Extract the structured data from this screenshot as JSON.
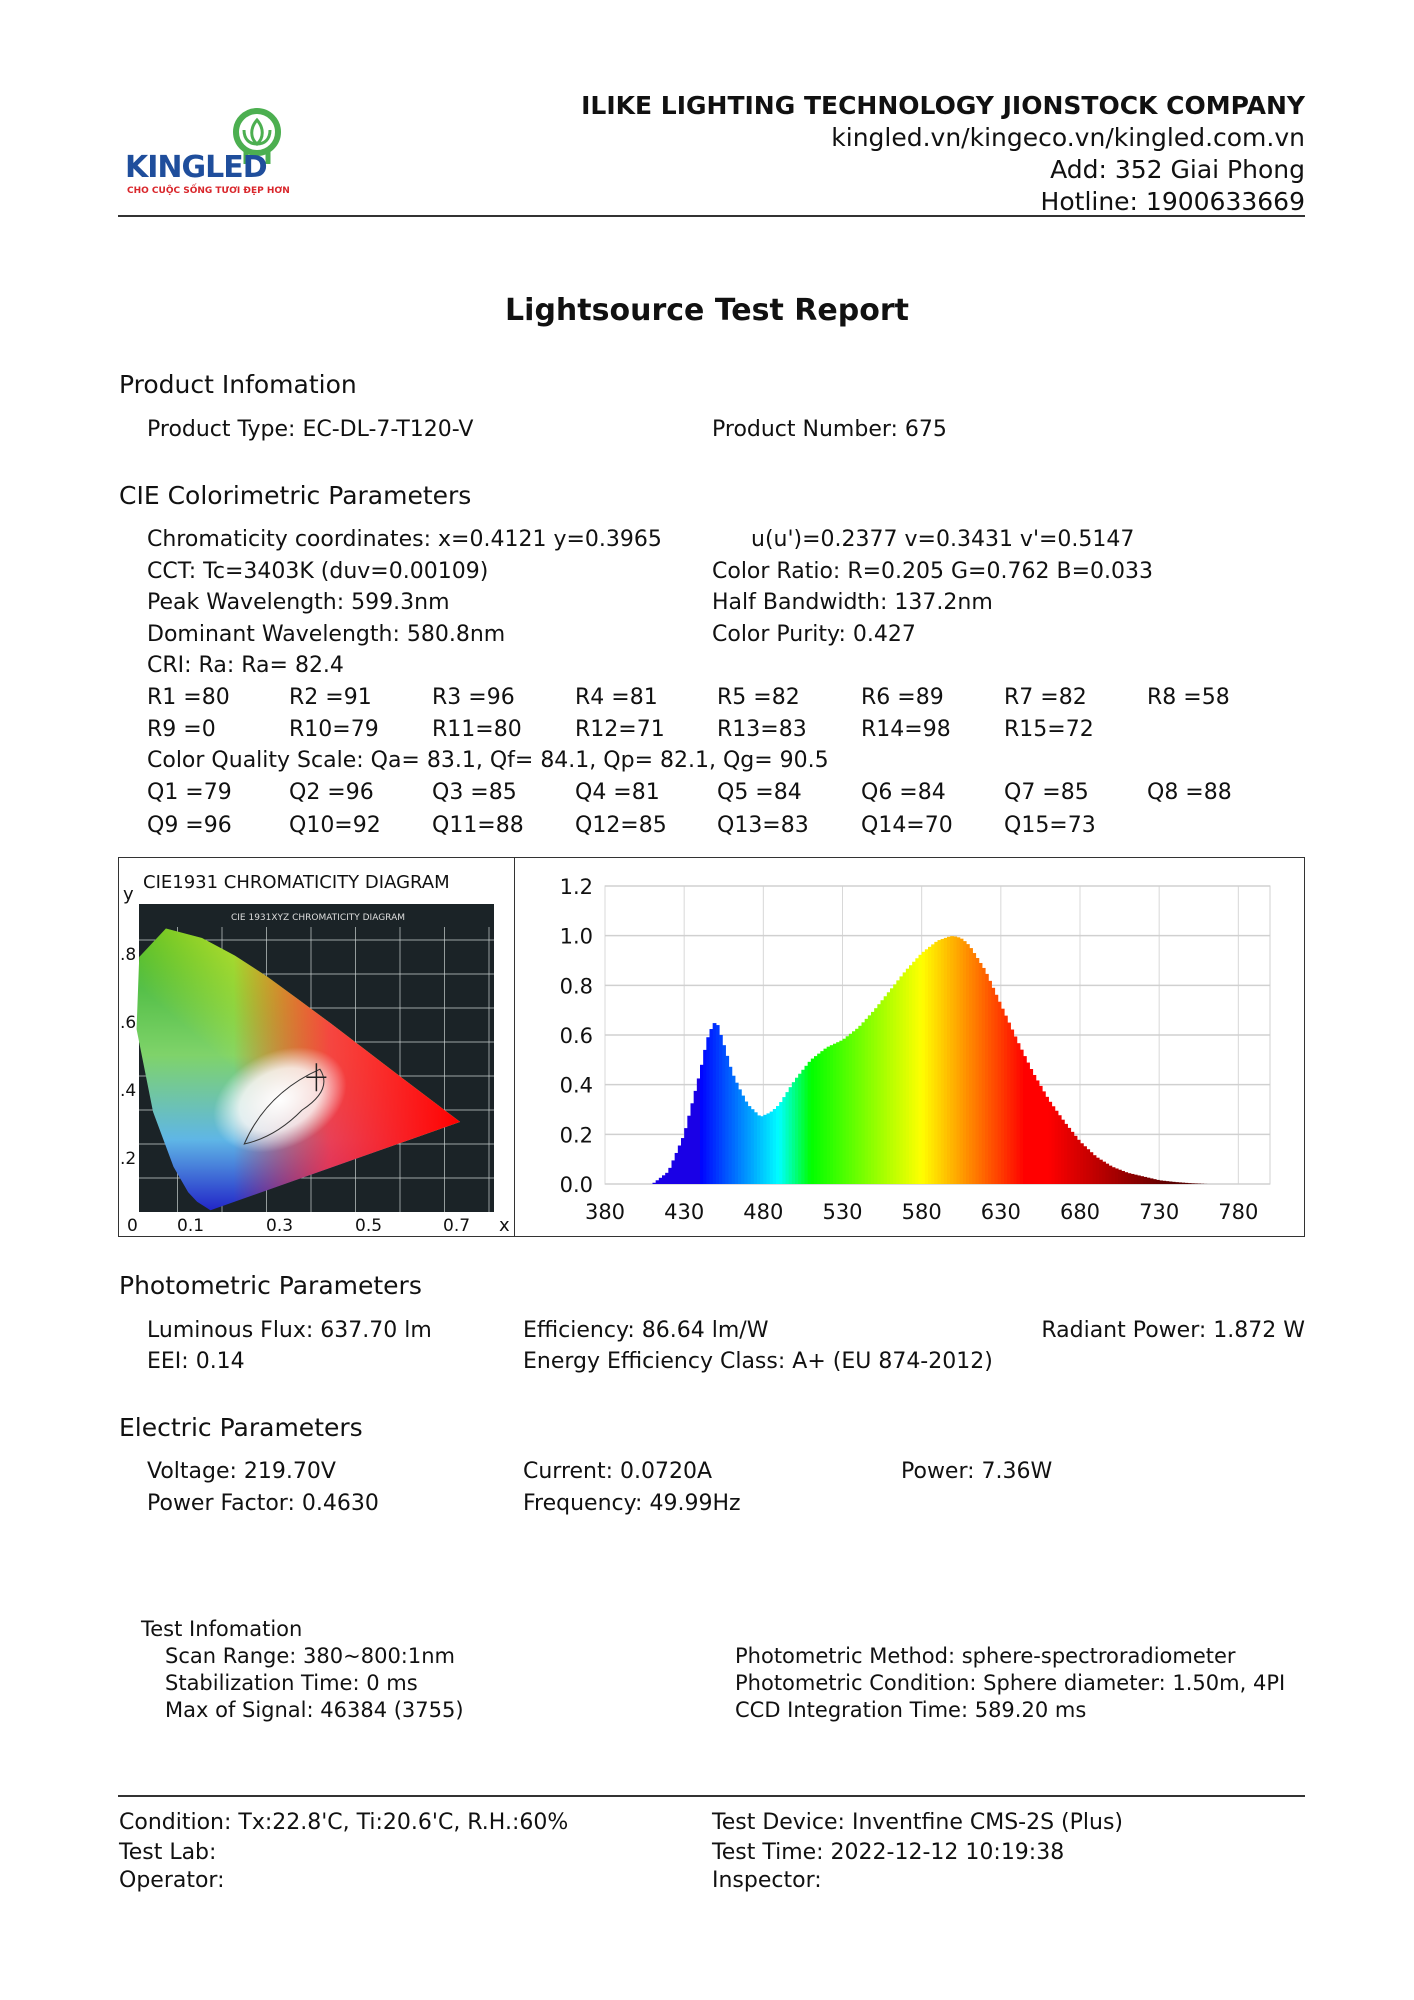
{
  "logo": {
    "brand": "KINGLED",
    "tagline": "CHO CUỘC SỐNG TƯƠI ĐẸP HƠN",
    "colors": {
      "blue": "#1f4e9c",
      "red": "#d9262b",
      "green": "#4caf50"
    }
  },
  "header": {
    "company": "ILIKE LIGHTING TECHNOLOGY JIONSTOCK COMPANY",
    "website": "kingled.vn/kingeco.vn/kingled.com.vn",
    "address": "Add: 352 Giai Phong",
    "hotline": "Hotline: 1900633669"
  },
  "title": "Lightsource Test Report",
  "product": {
    "heading": "Product Infomation",
    "type": "Product Type: EC-DL-7-T120-V",
    "number": "Product Number: 675"
  },
  "cie": {
    "heading": "CIE Colorimetric Parameters",
    "chromaticity": "Chromaticity coordinates: x=0.4121 y=0.3965",
    "uv": "u(u')=0.2377 v=0.3431 v'=0.5147",
    "cct": "CCT: Tc=3403K (duv=0.00109)",
    "color_ratio": "Color Ratio: R=0.205  G=0.762  B=0.033",
    "peak": "Peak Wavelength: 599.3nm",
    "half_bandwidth": "Half Bandwidth: 137.2nm",
    "dominant": "Dominant Wavelength: 580.8nm",
    "purity": "Color Purity: 0.427",
    "cri": "CRI: Ra: Ra= 82.4",
    "r_row1": [
      "R1 =80",
      "R2 =91",
      "R3 =96",
      "R4 =81",
      "R5 =82",
      "R6 =89",
      "R7 =82",
      "R8 =58"
    ],
    "r_row2": [
      "R9 =0",
      "R10=79",
      "R11=80",
      "R12=71",
      "R13=83",
      "R14=98",
      "R15=72"
    ],
    "cqs": "Color Quality Scale: Qa= 83.1, Qf= 84.1, Qp= 82.1, Qg= 90.5",
    "q_row1": [
      "Q1 =79",
      "Q2 =96",
      "Q3 =85",
      "Q4 =81",
      "Q5 =84",
      "Q6 =84",
      "Q7 =85",
      "Q8 =88"
    ],
    "q_row2": [
      "Q9 =96",
      "Q10=92",
      "Q11=88",
      "Q12=85",
      "Q13=83",
      "Q14=70",
      "Q15=73"
    ]
  },
  "cie_diagram": {
    "title": "CIE1931 CHROMATICITY DIAGRAM",
    "inner_title": "CIE 1931XYZ CHROMATICITY DIAGRAM",
    "y_label": "y",
    "x_label": "x",
    "y_ticks": [
      ".8",
      ".6",
      ".4",
      ".2"
    ],
    "x_ticks": [
      "0",
      "0.1",
      "0.3",
      "0.5",
      "0.7"
    ],
    "point": {
      "x": 0.4121,
      "y": 0.3965
    }
  },
  "chart_data": {
    "type": "area",
    "title": "",
    "xlabel": "",
    "ylabel": "",
    "xlim": [
      380,
      800
    ],
    "ylim": [
      0,
      1.2
    ],
    "x_ticks": [
      380,
      430,
      480,
      530,
      580,
      630,
      680,
      730,
      780
    ],
    "y_ticks": [
      "0.0",
      "0.2",
      "0.4",
      "0.6",
      "0.8",
      "1.0",
      "1.2"
    ],
    "grid": true,
    "fill": "wavelength-colored",
    "x": [
      410,
      420,
      430,
      440,
      445,
      450,
      455,
      460,
      465,
      470,
      478,
      485,
      490,
      500,
      510,
      520,
      530,
      540,
      550,
      560,
      570,
      580,
      590,
      599,
      605,
      610,
      620,
      630,
      640,
      650,
      660,
      670,
      680,
      690,
      700,
      710,
      720,
      730,
      740,
      750,
      760
    ],
    "y": [
      0,
      0.05,
      0.2,
      0.45,
      0.6,
      0.66,
      0.56,
      0.45,
      0.38,
      0.32,
      0.27,
      0.29,
      0.32,
      0.42,
      0.5,
      0.55,
      0.58,
      0.63,
      0.7,
      0.78,
      0.86,
      0.93,
      0.98,
      1.0,
      0.99,
      0.96,
      0.86,
      0.72,
      0.58,
      0.45,
      0.34,
      0.25,
      0.17,
      0.11,
      0.07,
      0.045,
      0.03,
      0.015,
      0.008,
      0.003,
      0
    ]
  },
  "photometric": {
    "heading": "Photometric Parameters",
    "flux": "Luminous Flux: 637.70 lm",
    "efficiency": "Efficiency: 86.64 lm/W",
    "radiant": "Radiant Power: 1.872 W",
    "eei": "EEI:  0.14",
    "eec": "Energy Efficiency Class: A+ (EU 874-2012)"
  },
  "electric": {
    "heading": "Electric Parameters",
    "voltage": "Voltage: 219.70V",
    "current": "Current: 0.0720A",
    "power": "Power: 7.36W",
    "pf": "Power Factor: 0.4630",
    "frequency": "Frequency: 49.99Hz"
  },
  "test_info": {
    "heading": "Test Infomation",
    "scan_range": "Scan Range: 380~800:1nm",
    "stabilization": "Stabilization Time: 0 ms",
    "max_signal": "Max of Signal: 46384 (3755)",
    "method": "Photometric Method: sphere-spectroradiometer",
    "condition": "Photometric Condition: Sphere diameter: 1.50m, 4PI",
    "ccd": "CCD Integration Time: 589.20 ms"
  },
  "footer": {
    "condition": "Condition: Tx:22.8'C, Ti:20.6'C, R.H.:60%",
    "lab": "Test Lab:",
    "operator": "Operator:",
    "device": "Test Device: Inventfine CMS-2S (Plus)",
    "time": "Test Time: 2022-12-12 10:19:38",
    "inspector": "Inspector:"
  }
}
